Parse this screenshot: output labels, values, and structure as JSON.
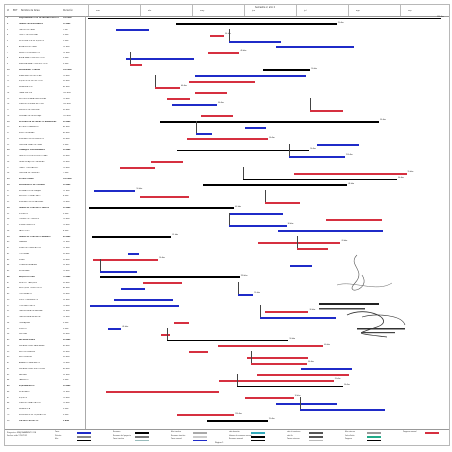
{
  "header": {
    "id_col": "Id",
    "edt_col": "EDT",
    "name_col": "Nombre de tarea",
    "dur_col": "Duración",
    "timescale_title": "Semestre 2, año 2",
    "timeline_labels": [
      "mar",
      "abr",
      "may",
      "jun",
      "jul",
      "ago",
      "sep"
    ]
  },
  "rows": [
    {
      "id": "1",
      "name": "MEJORAMIENTO DE LA INFRAESTRUCTURA",
      "dur": "195 días",
      "summary": true
    },
    {
      "id": "2",
      "name": "OBRAS PROVISIONALES",
      "dur": "15 días",
      "summary": true
    },
    {
      "id": "3",
      "name": "CARTEL DE OBRA",
      "dur": "1 día"
    },
    {
      "id": "4",
      "name": "CERCO PROVISIONAL",
      "dur": "3 días"
    },
    {
      "id": "5",
      "name": "MOVILIZACION DE EQUIPOS",
      "dur": "2 días"
    },
    {
      "id": "6",
      "name": "ALMACEN DE OBRA",
      "dur": "15 días"
    },
    {
      "id": "7",
      "name": "SERVICIOS HIGIENICOS",
      "dur": "15 días"
    },
    {
      "id": "8",
      "name": "AGUA PARA CONSTRUCCION",
      "dur": "5 días"
    },
    {
      "id": "9",
      "name": "ENERGIA PARA CONSTRUCCION",
      "dur": "5 días"
    },
    {
      "id": "10",
      "name": "SEGURIDAD Y SALUD",
      "dur": "195 días",
      "summary": true
    },
    {
      "id": "11",
      "name": "ELABORACION DEL PLAN",
      "dur": "10 días"
    },
    {
      "id": "12",
      "name": "EQUIPOS DE PROTECCION",
      "dur": "30 días"
    },
    {
      "id": "13",
      "name": "SEÑALIZACION",
      "dur": "45 días"
    },
    {
      "id": "14",
      "name": "CAPACITACION",
      "dur": "195 días"
    },
    {
      "id": "15",
      "name": "RECURSOS PARA RESPUESTAS",
      "dur": "10 días"
    },
    {
      "id": "16",
      "name": "PLAN DE VIGILANCIA COVID",
      "dur": "195 días"
    },
    {
      "id": "17",
      "name": "INSUMOS DE LIMPIEZA",
      "dur": "90 días"
    },
    {
      "id": "18",
      "name": "PRUEBAS DE DESPISTAJE",
      "dur": "120 días"
    },
    {
      "id": "19",
      "name": "MITIGACION DE IMPACTO AMBIENTAL",
      "dur": "90 días",
      "summary": true
    },
    {
      "id": "20",
      "name": "ACONDICIONAMIENTO",
      "dur": "45 días"
    },
    {
      "id": "21",
      "name": "RIEGO DE AREAS",
      "dur": "60 días"
    },
    {
      "id": "22",
      "name": "ELIMINACION DE RESIDUOS",
      "dur": "90 días"
    },
    {
      "id": "23",
      "name": "LIMPIEZA FINAL DE OBRA",
      "dur": "5 días"
    },
    {
      "id": "24",
      "name": "TRABAJOS PRELIMINARES",
      "dur": "30 días",
      "summary": true
    },
    {
      "id": "25",
      "name": "DEMOLICION DE ESTRUCTURAS",
      "dur": "30 días"
    },
    {
      "id": "26",
      "name": "DESMONTAJE DE CUBIERTAS",
      "dur": "20 días"
    },
    {
      "id": "27",
      "name": "TRAZO Y REPLANTEO",
      "dur": "10 días"
    },
    {
      "id": "28",
      "name": "LIMPIEZA DE TERRENO",
      "dur": "7 días"
    },
    {
      "id": "29",
      "name": "ESTRUCTURAS",
      "dur": "105 días",
      "summary": true
    },
    {
      "id": "30",
      "name": "MOVIMIENTO DE TIERRAS",
      "dur": "20 días",
      "summary": true
    },
    {
      "id": "31",
      "name": "EXCAVACION DE ZANJAS",
      "dur": "12 días"
    },
    {
      "id": "32",
      "name": "RELLENO COMPACTADO",
      "dur": "8 días"
    },
    {
      "id": "33",
      "name": "ELIMINACION DE MATERIAL",
      "dur": "10 días"
    },
    {
      "id": "34",
      "name": "OBRAS DE CONCRETO SIMPLE",
      "dur": "25 días",
      "summary": true
    },
    {
      "id": "35",
      "name": "SOLADOS",
      "dur": "5 días"
    },
    {
      "id": "36",
      "name": "CIMIENTOS CORRIDOS",
      "dur": "10 días"
    },
    {
      "id": "37",
      "name": "SOBRECIMIENTOS",
      "dur": "10 días"
    },
    {
      "id": "38",
      "name": "FALSO PISO",
      "dur": "8 días"
    },
    {
      "id": "39",
      "name": "OBRAS DE CONCRETO ARMADO",
      "dur": "60 días",
      "summary": true
    },
    {
      "id": "40",
      "name": "ZAPATAS",
      "dur": "12 días"
    },
    {
      "id": "41",
      "name": "VIGAS DE CIMENTACION",
      "dur": "12 días"
    },
    {
      "id": "42",
      "name": "COLUMNAS",
      "dur": "30 días"
    },
    {
      "id": "43",
      "name": "VIGAS",
      "dur": "30 días"
    },
    {
      "id": "44",
      "name": "LOSAS ALIGERADAS",
      "dur": "25 días"
    },
    {
      "id": "45",
      "name": "ESCALERAS",
      "dur": "10 días"
    },
    {
      "id": "46",
      "name": "ARQUITECTURA",
      "dur": "75 días",
      "summary": true
    },
    {
      "id": "47",
      "name": "MUROS Y TABIQUES",
      "dur": "30 días"
    },
    {
      "id": "48",
      "name": "REVOQUES Y ENLUCIDOS",
      "dur": "45 días"
    },
    {
      "id": "49",
      "name": "CIELORRASOS",
      "dur": "20 días"
    },
    {
      "id": "50",
      "name": "PISOS Y PAVIMENTOS",
      "dur": "25 días"
    },
    {
      "id": "51",
      "name": "CONTRAZOCALOS",
      "dur": "10 días"
    },
    {
      "id": "52",
      "name": "CARPINTERIA DE MADERA",
      "dur": "15 días"
    },
    {
      "id": "53",
      "name": "CARPINTERIA METALICA",
      "dur": "15 días"
    },
    {
      "id": "54",
      "name": "CERRAJERIA",
      "dur": "5 días"
    },
    {
      "id": "55",
      "name": "VIDRIOS",
      "dur": "5 días"
    },
    {
      "id": "56",
      "name": "PINTURA",
      "dur": "30 días"
    },
    {
      "id": "57",
      "name": "INSTALACIONES",
      "dur": "90 días",
      "summary": true
    },
    {
      "id": "58",
      "name": "INSTALACIONES SANITARIAS",
      "dur": "60 días"
    },
    {
      "id": "59",
      "name": "RED DE DESAGUE",
      "dur": "30 días"
    },
    {
      "id": "60",
      "name": "RED DE AGUA",
      "dur": "30 días"
    },
    {
      "id": "61",
      "name": "APARATOS SANITARIOS",
      "dur": "10 días"
    },
    {
      "id": "62",
      "name": "INSTALACIONES ELECTRICAS",
      "dur": "60 días"
    },
    {
      "id": "63",
      "name": "SALIDAS",
      "dur": "25 días"
    },
    {
      "id": "64",
      "name": "TABLEROS",
      "dur": "5 días"
    },
    {
      "id": "65",
      "name": "EQUIPAMIENTO",
      "dur": "20 días",
      "summary": true
    },
    {
      "id": "66",
      "name": "MOBILIARIO",
      "dur": "15 días"
    },
    {
      "id": "67",
      "name": "EQUIPOS",
      "dur": "10 días"
    },
    {
      "id": "68",
      "name": "PLAN DE CAPACITACION",
      "dur": "10 días"
    },
    {
      "id": "69",
      "name": "SEÑALETICA",
      "dur": "5 días"
    },
    {
      "id": "70",
      "name": "EXPEDIENTE DE LIQUIDACION",
      "dur": "5 días"
    },
    {
      "id": "71",
      "name": "FIN DEL PROYECTO",
      "dur": "0 días",
      "summary": true
    }
  ],
  "bar_labels": [
    "195 días",
    "15 días",
    "30 días",
    "45 días",
    "90 días",
    "60 días",
    "30 días",
    "25 días",
    "20 días",
    "10 días"
  ],
  "legend": {
    "project": "Proyecto: MEJORAMIENTO DE",
    "date": "Fecha: sáb 17/07/21",
    "items": [
      "Tarea",
      "División",
      "Hito",
      "Resumen",
      "Resumen del proyecto",
      "Tarea inactiva",
      "Hito inactivo",
      "Resumen inactivo",
      "Tarea manual",
      "solo duración",
      "Informe de resumen manual",
      "Resumen manual",
      "solo el comienzo",
      "solo fin",
      "Tareas externas",
      "Hito externo",
      "Fecha límite",
      "Progreso",
      "Progreso manual"
    ]
  },
  "page": "Página 1",
  "colors": {
    "task": "#1f2bc8",
    "critical": "#d63040",
    "summary": "#000000"
  }
}
